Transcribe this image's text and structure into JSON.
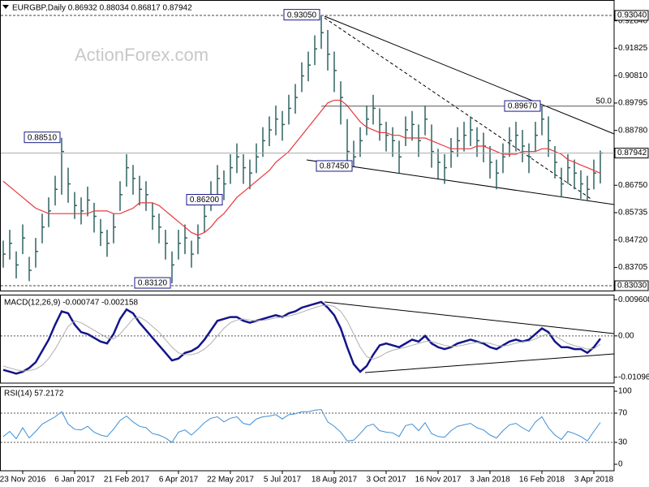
{
  "watermark": "ActionForex.com",
  "chart_data": [
    {
      "type": "ohlc",
      "title": "EURGBP,Daily 0.86932 0.88034 0.86817 0.87942",
      "color": "#2f6262",
      "categories": [
        null,
        null,
        null,
        "23 Nov 2016",
        null,
        null,
        null,
        null,
        null,
        null,
        null,
        "6 Jan 2017",
        null,
        null,
        null,
        null,
        null,
        null,
        null,
        "21 Feb 2017",
        null,
        null,
        null,
        null,
        null,
        null,
        null,
        "6 Apr 2017",
        null,
        null,
        null,
        null,
        null,
        null,
        null,
        "22 May 2017",
        null,
        null,
        null,
        null,
        null,
        null,
        null,
        "5 Jul 2017",
        null,
        null,
        null,
        null,
        null,
        null,
        null,
        "18 Aug 2017",
        null,
        null,
        null,
        null,
        null,
        null,
        null,
        "3 Oct 2017",
        null,
        null,
        null,
        null,
        null,
        null,
        null,
        "16 Nov 2017",
        null,
        null,
        null,
        null,
        null,
        null,
        null,
        "3 Jan 2018",
        null,
        null,
        null,
        null,
        null,
        null,
        null,
        "16 Feb 2018",
        null,
        null,
        null,
        null,
        null,
        null,
        null,
        "3 Apr 2018",
        null
      ],
      "high": [
        0.847,
        0.851,
        0.843,
        0.853,
        0.841,
        0.848,
        0.857,
        0.863,
        0.871,
        0.8851,
        0.874,
        0.865,
        0.863,
        0.867,
        0.861,
        0.855,
        0.851,
        0.857,
        0.869,
        0.879,
        0.875,
        0.871,
        0.869,
        0.861,
        0.857,
        0.851,
        0.843,
        0.851,
        0.853,
        0.847,
        0.853,
        0.861,
        0.869,
        0.875,
        0.873,
        0.879,
        0.883,
        0.879,
        0.877,
        0.883,
        0.889,
        0.893,
        0.897,
        0.895,
        0.901,
        0.905,
        0.913,
        0.917,
        0.923,
        0.9305,
        0.925,
        0.917,
        0.906,
        0.892,
        0.884,
        0.889,
        0.897,
        0.901,
        0.896,
        0.891,
        0.889,
        0.884,
        0.893,
        0.895,
        0.89,
        0.897,
        0.89,
        0.881,
        0.879,
        0.885,
        0.889,
        0.891,
        0.893,
        0.889,
        0.887,
        0.882,
        0.877,
        0.883,
        0.889,
        0.891,
        0.888,
        0.883,
        0.891,
        0.8967,
        0.893,
        0.882,
        0.874,
        0.879,
        0.877,
        0.873,
        0.871,
        0.877,
        0.88034
      ],
      "low": [
        0.837,
        0.84,
        0.833,
        0.842,
        0.832,
        0.837,
        0.846,
        0.852,
        0.86,
        0.864,
        0.861,
        0.855,
        0.853,
        0.856,
        0.85,
        0.845,
        0.841,
        0.846,
        0.858,
        0.867,
        0.864,
        0.86,
        0.858,
        0.851,
        0.846,
        0.84,
        0.8312,
        0.84,
        0.842,
        0.837,
        0.842,
        0.85,
        0.858,
        0.864,
        0.862,
        0.868,
        0.872,
        0.868,
        0.866,
        0.872,
        0.878,
        0.882,
        0.886,
        0.884,
        0.89,
        0.894,
        0.902,
        0.906,
        0.912,
        0.918,
        0.91,
        0.902,
        0.89,
        0.876,
        0.8745,
        0.878,
        0.886,
        0.89,
        0.884,
        0.88,
        0.878,
        0.872,
        0.882,
        0.884,
        0.878,
        0.886,
        0.874,
        0.87,
        0.868,
        0.874,
        0.878,
        0.88,
        0.882,
        0.878,
        0.876,
        0.87,
        0.866,
        0.872,
        0.878,
        0.88,
        0.876,
        0.872,
        0.88,
        0.886,
        0.878,
        0.87,
        0.863,
        0.868,
        0.866,
        0.8625,
        0.862,
        0.866,
        0.86817
      ],
      "close": [
        0.842,
        0.846,
        0.838,
        0.848,
        0.836,
        0.843,
        0.852,
        0.858,
        0.866,
        0.88,
        0.868,
        0.86,
        0.858,
        0.862,
        0.856,
        0.85,
        0.846,
        0.852,
        0.864,
        0.874,
        0.87,
        0.866,
        0.864,
        0.856,
        0.852,
        0.846,
        0.838,
        0.846,
        0.848,
        0.842,
        0.848,
        0.856,
        0.864,
        0.87,
        0.868,
        0.874,
        0.878,
        0.874,
        0.872,
        0.878,
        0.884,
        0.888,
        0.892,
        0.89,
        0.896,
        0.9,
        0.908,
        0.912,
        0.918,
        0.924,
        0.916,
        0.91,
        0.9,
        0.88,
        0.878,
        0.884,
        0.892,
        0.896,
        0.89,
        0.886,
        0.884,
        0.878,
        0.888,
        0.89,
        0.884,
        0.892,
        0.88,
        0.876,
        0.874,
        0.88,
        0.884,
        0.886,
        0.888,
        0.884,
        0.882,
        0.876,
        0.872,
        0.878,
        0.884,
        0.886,
        0.882,
        0.878,
        0.886,
        0.892,
        0.884,
        0.876,
        0.868,
        0.874,
        0.872,
        0.868,
        0.866,
        0.872,
        0.87942
      ],
      "series": [
        {
          "color": "#e8383d",
          "values": [
            0.869,
            0.867,
            0.865,
            0.863,
            0.861,
            0.859,
            0.858,
            0.857,
            0.857,
            0.857,
            0.857,
            0.857,
            0.857,
            0.857,
            0.858,
            0.858,
            0.858,
            0.857,
            0.857,
            0.858,
            0.859,
            0.861,
            0.861,
            0.861,
            0.86,
            0.858,
            0.856,
            0.854,
            0.852,
            0.85,
            0.849,
            0.85,
            0.852,
            0.855,
            0.857,
            0.86,
            0.863,
            0.865,
            0.867,
            0.869,
            0.871,
            0.873,
            0.876,
            0.878,
            0.88,
            0.883,
            0.886,
            0.889,
            0.892,
            0.895,
            0.898,
            0.899,
            0.899,
            0.897,
            0.894,
            0.891,
            0.889,
            0.888,
            0.887,
            0.887,
            0.886,
            0.886,
            0.885,
            0.885,
            0.885,
            0.885,
            0.884,
            0.883,
            0.882,
            0.881,
            0.881,
            0.881,
            0.881,
            0.882,
            0.882,
            0.881,
            0.88,
            0.879,
            0.879,
            0.879,
            0.88,
            0.88,
            0.88,
            0.881,
            0.881,
            0.88,
            0.879,
            0.877,
            0.876,
            0.875,
            0.874,
            0.873,
            0.872
          ]
        }
      ],
      "ylim": [
        0.8285,
        0.9361
      ],
      "yticks": [
        {
          "value": 0.9284,
          "label": "0.92840"
        },
        {
          "value": 0.91825,
          "label": "0.91825"
        },
        {
          "value": 0.9081,
          "label": "0.90810"
        },
        {
          "value": 0.89795,
          "label": "0.89795"
        },
        {
          "value": 0.8878,
          "label": "0.88780"
        },
        {
          "value": 0.8675,
          "label": "0.86750"
        },
        {
          "value": 0.85735,
          "label": "0.85735"
        },
        {
          "value": 0.8472,
          "label": "0.84720"
        },
        {
          "value": 0.83705,
          "label": "0.83705"
        }
      ],
      "hlines": [
        {
          "value": 0.9304,
          "label": "0.93040"
        },
        {
          "value": 0.8303,
          "label": "0.83030"
        }
      ],
      "fib": {
        "value": 0.8968,
        "label": "50.0"
      },
      "annotations": [
        {
          "text": "0.93050",
          "value": 0.9305
        },
        {
          "text": "0.88510",
          "value": 0.8851
        },
        {
          "text": "0.87450",
          "value": 0.8745
        },
        {
          "text": "0.83120",
          "value": 0.8312
        },
        {
          "text": "0.89670",
          "value": 0.8967
        },
        {
          "text": "0.86200",
          "value": 0.862
        }
      ]
    },
    {
      "type": "line",
      "title": "MACD(12,26,9) -0.000747 -0.002158",
      "series": [
        {
          "color": "#14148c",
          "values": [
            -0.009,
            -0.0095,
            -0.01,
            -0.0095,
            -0.0085,
            -0.007,
            -0.004,
            -0.001,
            0.003,
            0.0065,
            0.006,
            0.003,
            0.001,
            0.0005,
            -0.0005,
            -0.0015,
            -0.002,
            0.0005,
            0.0045,
            0.007,
            0.006,
            0.0035,
            0.0015,
            -0.0005,
            -0.0025,
            -0.0045,
            -0.0065,
            -0.006,
            -0.0045,
            -0.004,
            -0.003,
            -0.001,
            0.0015,
            0.004,
            0.0045,
            0.005,
            0.005,
            0.004,
            0.0035,
            0.004,
            0.0045,
            0.005,
            0.0055,
            0.005,
            0.006,
            0.0065,
            0.0075,
            0.008,
            0.0085,
            0.009,
            0.0075,
            0.0055,
            0.002,
            -0.003,
            -0.0075,
            -0.0095,
            -0.008,
            -0.005,
            -0.0025,
            -0.002,
            -0.0025,
            -0.003,
            -0.002,
            -0.001,
            -0.0015,
            0,
            -0.002,
            -0.003,
            -0.0035,
            -0.003,
            -0.002,
            -0.0015,
            -0.001,
            -0.0015,
            -0.002,
            -0.003,
            -0.0035,
            -0.0025,
            -0.0015,
            -0.001,
            -0.0015,
            -0.001,
            0.0005,
            0.002,
            0.001,
            -0.0015,
            -0.003,
            -0.003,
            -0.0035,
            -0.0035,
            -0.0045,
            -0.003,
            -0.000747
          ]
        },
        {
          "color": "#b0b0b0",
          "values": [
            -0.008,
            -0.0085,
            -0.009,
            -0.0093,
            -0.0092,
            -0.0088,
            -0.0078,
            -0.006,
            -0.0035,
            -0.0005,
            0.0025,
            0.004,
            0.0035,
            0.0025,
            0.0015,
            0.0005,
            -0.0005,
            -0.0008,
            0.0005,
            0.0025,
            0.0045,
            0.005,
            0.004,
            0.0025,
            0.001,
            -0.001,
            -0.003,
            -0.0045,
            -0.005,
            -0.005,
            -0.0045,
            -0.0035,
            -0.002,
            0,
            0.002,
            0.0035,
            0.0042,
            0.0045,
            0.0042,
            0.004,
            0.0041,
            0.0044,
            0.0048,
            0.005,
            0.0053,
            0.0057,
            0.0063,
            0.0069,
            0.0075,
            0.008,
            0.0082,
            0.0078,
            0.0065,
            0.004,
            0.0005,
            -0.003,
            -0.0055,
            -0.0062,
            -0.0055,
            -0.0045,
            -0.0038,
            -0.0034,
            -0.003,
            -0.0025,
            -0.002,
            -0.0015,
            -0.0015,
            -0.002,
            -0.0025,
            -0.0028,
            -0.0027,
            -0.0024,
            -0.002,
            -0.0017,
            -0.0017,
            -0.002,
            -0.0025,
            -0.0027,
            -0.0024,
            -0.0019,
            -0.0016,
            -0.0014,
            -0.0008,
            0,
            0.0005,
            0,
            -0.001,
            -0.002,
            -0.0026,
            -0.003,
            -0.0035,
            -0.0034,
            -0.002158
          ]
        }
      ],
      "ylim": [
        -0.01252,
        0.01094
      ],
      "yticks": [
        0.009608,
        {
          "value": 0,
          "label": "0.00"
        },
        -0.010961
      ],
      "levels": [
        0
      ]
    },
    {
      "type": "line",
      "title": "RSI(14) 57.2172",
      "series": [
        {
          "color": "#3d8fd6",
          "values": [
            38,
            45,
            35,
            50,
            36,
            45,
            55,
            60,
            65,
            72,
            55,
            48,
            47,
            52,
            44,
            40,
            38,
            48,
            60,
            66,
            58,
            52,
            50,
            42,
            40,
            36,
            30,
            44,
            47,
            40,
            48,
            57,
            63,
            65,
            58,
            63,
            65,
            56,
            54,
            62,
            65,
            66,
            68,
            62,
            68,
            69,
            72,
            72,
            74,
            75,
            58,
            52,
            44,
            32,
            33,
            42,
            52,
            55,
            46,
            44,
            43,
            38,
            53,
            55,
            46,
            57,
            42,
            38,
            37,
            46,
            52,
            54,
            56,
            50,
            47,
            40,
            36,
            46,
            54,
            56,
            50,
            45,
            58,
            65,
            50,
            40,
            34,
            45,
            42,
            38,
            32,
            45,
            57.2172
          ]
        }
      ],
      "ylim": [
        -8.9,
        106.7
      ],
      "yticks": [
        100,
        70,
        30,
        0
      ],
      "levels": [
        70,
        30
      ]
    }
  ]
}
